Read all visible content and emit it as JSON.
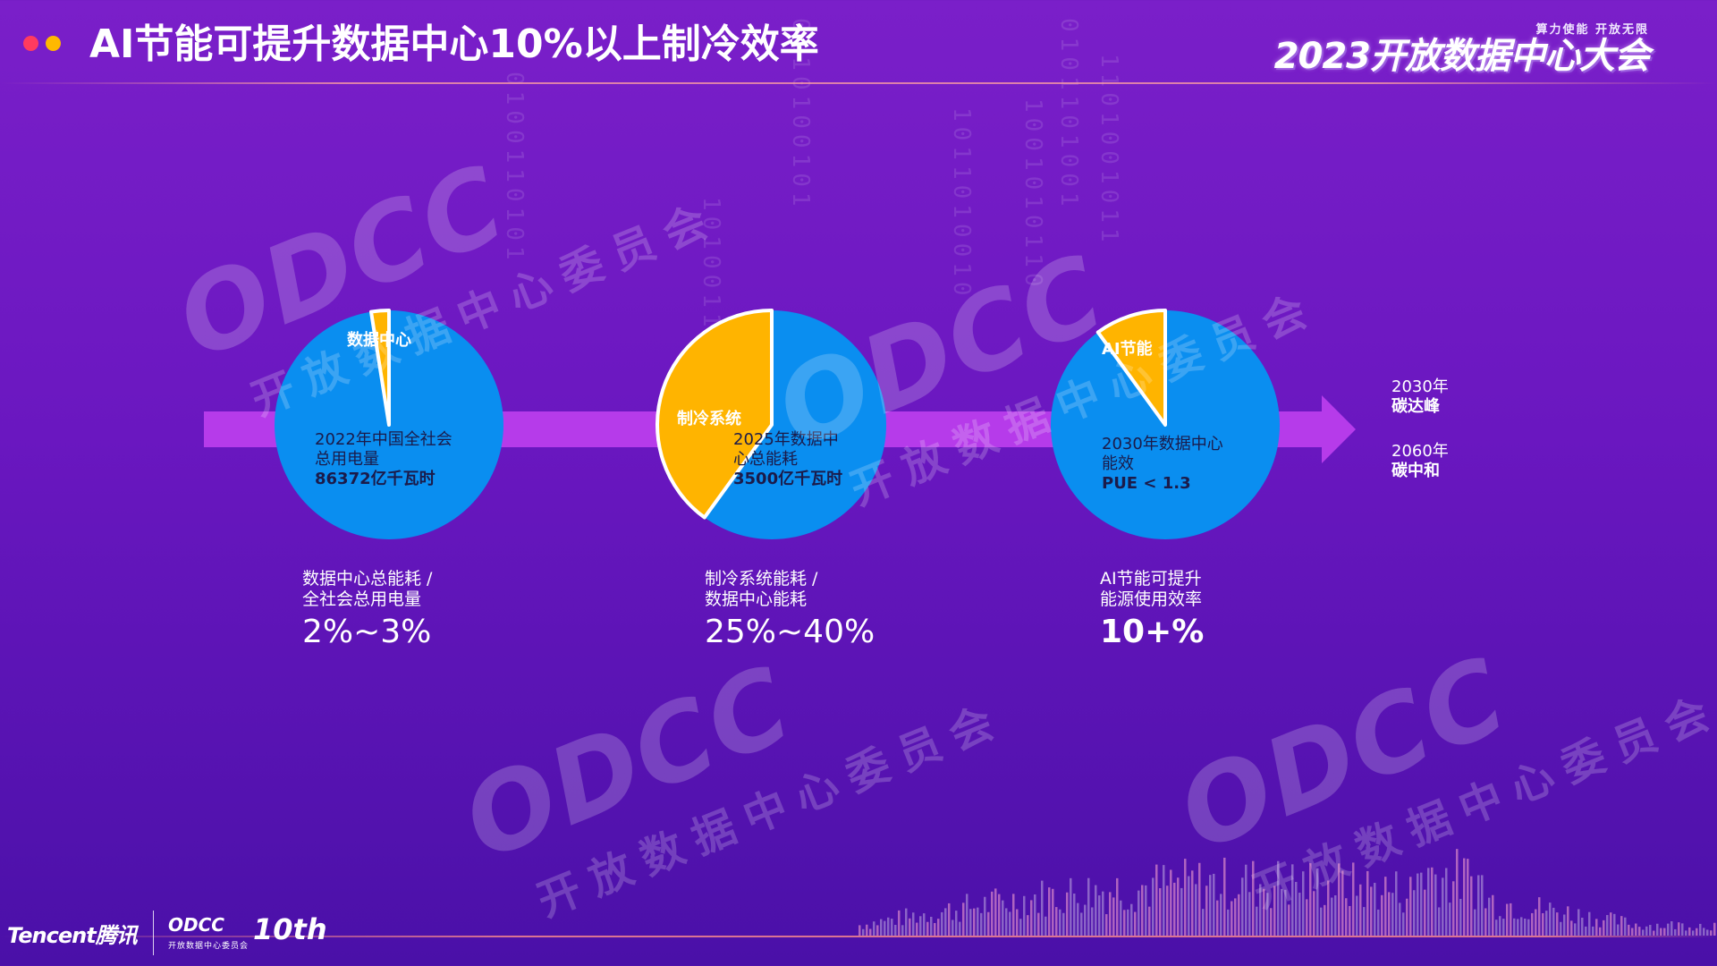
{
  "header": {
    "title": "AI节能可提升数据中心10%以上制冷效率",
    "conference_tagline": "算力使能 开放无限",
    "conference_name": "2023开放数据中心大会"
  },
  "watermark": {
    "logo_text": "ODCC",
    "subtitle": "开放数据中心委员会"
  },
  "pies": [
    {
      "slice_label": "数据中心",
      "slice_fraction": 0.025,
      "lines": [
        "2022年中国全社会",
        "总用电量"
      ],
      "value": "86372亿千瓦时",
      "caption_lines": [
        "数据中心总能耗 /",
        "全社会总用电量"
      ],
      "caption_value": "2%~3%"
    },
    {
      "slice_label": "制冷系统",
      "slice_fraction": 0.4,
      "lines": [
        "2025年数据中",
        "心总能耗"
      ],
      "value": "3500亿千瓦时",
      "caption_lines": [
        "制冷系统能耗 /",
        "数据中心能耗"
      ],
      "caption_value": "25%~40%"
    },
    {
      "slice_label": "AI节能",
      "slice_fraction": 0.1,
      "lines": [
        "2030年数据中心",
        "能效"
      ],
      "value": "PUE < 1.3",
      "caption_lines": [
        "AI节能可提升",
        "能源使用效率"
      ],
      "caption_value": "10+%"
    }
  ],
  "milestones": [
    {
      "year": "2030年",
      "event": "碳达峰"
    },
    {
      "year": "2060年",
      "event": "碳中和"
    }
  ],
  "footer": {
    "tencent": "Tencent腾讯",
    "odcc": "ODCC",
    "odcc_sub": "开放数据中心委员会",
    "anniversary": "10th"
  },
  "colors": {
    "pie_main": "#0a8ef0",
    "pie_slice": "#ffb400",
    "arrow": "#b63bea"
  }
}
